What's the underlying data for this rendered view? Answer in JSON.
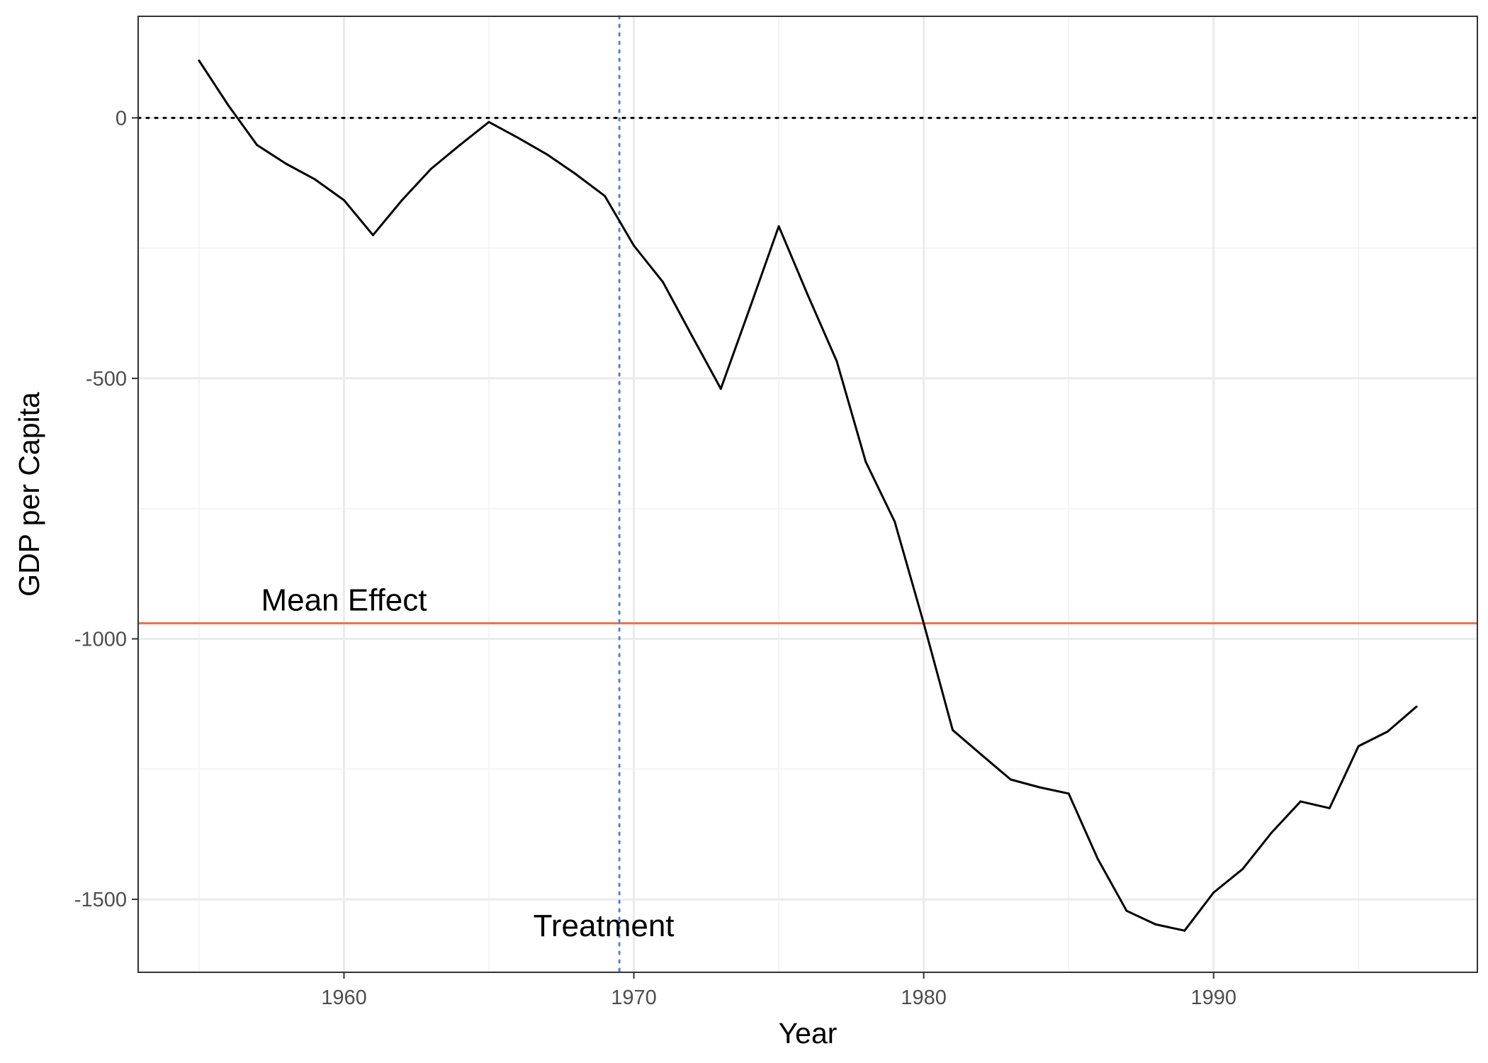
{
  "chart_data": {
    "type": "line",
    "title": "",
    "xlabel": "Year",
    "ylabel": "GDP per Capita",
    "xlim": [
      1952.9,
      1999.1
    ],
    "ylim": [
      -1640,
      195
    ],
    "x_ticks": [
      1960,
      1970,
      1980,
      1990
    ],
    "x_tick_labels": [
      "1960",
      "1970",
      "1980",
      "1990"
    ],
    "x_minor_ticks": [
      1955,
      1965,
      1975,
      1985,
      1995
    ],
    "y_ticks": [
      0,
      -500,
      -1000,
      -1500
    ],
    "y_tick_labels": [
      "0",
      "-500",
      "-1000",
      "-1500"
    ],
    "y_minor_ticks": [
      -250,
      -750,
      -1250
    ],
    "grid": true,
    "legend": "none",
    "series": [
      {
        "x": [
          1955,
          1956,
          1957,
          1958,
          1959,
          1960,
          1961,
          1962,
          1963,
          1964,
          1965,
          1966,
          1967,
          1968,
          1969,
          1970,
          1971,
          1972,
          1973,
          1974,
          1975,
          1976,
          1977,
          1978,
          1979,
          1980,
          1981,
          1982,
          1983,
          1984,
          1985,
          1986,
          1987,
          1988,
          1989,
          1990,
          1991,
          1992,
          1993,
          1994,
          1995,
          1996,
          1997
        ],
        "values": [
          110,
          25,
          -52,
          -88,
          -118,
          -158,
          -225,
          -158,
          -98,
          -52,
          -8,
          -38,
          -70,
          -108,
          -150,
          -245,
          -315,
          -418,
          -520,
          -365,
          -208,
          -340,
          -467,
          -660,
          -775,
          -970,
          -1175,
          -1223,
          -1270,
          -1285,
          -1297,
          -1422,
          -1522,
          -1548,
          -1560,
          -1487,
          -1442,
          -1372,
          -1312,
          -1325,
          -1206,
          -1178,
          -1130
        ]
      }
    ],
    "reference_lines": {
      "zero": {
        "value": 0,
        "color": "#000000",
        "style": "dotted"
      },
      "mean_effect": {
        "value": -970,
        "color": "#f0714a",
        "label": "Mean Effect",
        "label_x": 1960
      },
      "treatment": {
        "value": 1969.5,
        "color": "#4f7fe8",
        "style": "dotted",
        "label": "Treatment",
        "label_y": -1550
      }
    },
    "colors": {
      "line": "#000000",
      "grid_major": "#ebebeb",
      "grid_minor": "#f2f2f2",
      "panel_border": "#333333"
    }
  }
}
